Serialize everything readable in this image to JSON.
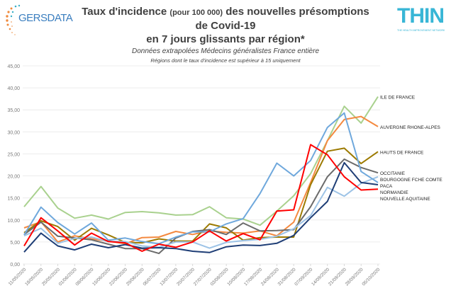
{
  "header": {
    "logo_left": "GERSDATA",
    "logo_right": "THIN",
    "logo_right_sub": "THE HEALTH IMPROVEMENT NETWORK"
  },
  "chart_data": {
    "type": "line",
    "title_part1": "Taux d'incidence",
    "title_part2": "(pour 100 000)",
    "title_part3": "des nouvelles présomptions",
    "title_line2": "de Covid-19",
    "title_line3": "en 7 jours glissants par région*",
    "subtitle": "Données extrapolées Médecins généralistes France entière",
    "note": "Régions dont le taux d'incidence est supérieur à 15 uniquement",
    "ylim": [
      0,
      45
    ],
    "yticks": [
      "0,00",
      "5,00",
      "10,00",
      "15,00",
      "20,00",
      "25,00",
      "30,00",
      "35,00",
      "40,00",
      "45,00"
    ],
    "grid": true,
    "legend": "line-end labels, right",
    "categories": [
      "11/05/2020",
      "18/05/2020",
      "25/05/2020",
      "01/06/2020",
      "08/06/2020",
      "15/06/2020",
      "22/06/2020",
      "29/06/2020",
      "06/07/2020",
      "13/07/2020",
      "20/07/2020",
      "27/07/2020",
      "03/08/2020",
      "10/08/2020",
      "17/08/2020",
      "24/08/2020",
      "31/08/2020",
      "07/09/2020",
      "14/09/2020",
      "21/09/2020",
      "28/09/2020",
      "05/10/2020"
    ],
    "series": [
      {
        "name": "ILE DE FRANCE",
        "color": "#A9D18E",
        "values": [
          13,
          17.6,
          12.7,
          10.4,
          11.1,
          10.2,
          11.7,
          11.9,
          11.6,
          11.1,
          11.2,
          13,
          10.5,
          10.2,
          8.8,
          12,
          15.5,
          20.5,
          28,
          35.8,
          32,
          38
        ]
      },
      {
        "name": "AUVERGNE RHONE-ALPES",
        "color": "#F4893F",
        "values": [
          8.2,
          9.6,
          5.0,
          6.4,
          5.7,
          5.2,
          4.6,
          6.0,
          6.1,
          7.4,
          6.7,
          7.5,
          7.2,
          7.0,
          7.5,
          6.4,
          9.5,
          18.5,
          28,
          32.8,
          33.5,
          31.2
        ]
      },
      {
        "name": "HAUTS DE FRANCE",
        "color": "#9C7A00",
        "values": [
          7.1,
          9.8,
          8.5,
          5.4,
          8.1,
          6.6,
          4.9,
          4.8,
          5.7,
          5.2,
          5.2,
          9.1,
          8.2,
          5.4,
          6.0,
          6.1,
          6.1,
          18,
          25.6,
          26.3,
          22.8,
          25.5
        ]
      },
      {
        "name": "OCCITANIE",
        "color": "#6B6B6B",
        "values": [
          6.7,
          9.5,
          6.3,
          5.9,
          5.5,
          4.5,
          3.5,
          3.5,
          2.4,
          5.9,
          7.4,
          7.8,
          6.7,
          9.3,
          7.5,
          7.6,
          7.8,
          13,
          19.8,
          23.8,
          21.9,
          20.7
        ]
      },
      {
        "name": "BOURGOGNE FCHE COMTE",
        "color": "#9DC3E6",
        "values": [
          6.4,
          8.1,
          4.7,
          5.8,
          6.1,
          5.1,
          5.1,
          4.1,
          3.8,
          5.0,
          5.0,
          3.6,
          4.9,
          5.3,
          5.6,
          6.3,
          8.0,
          11.0,
          17.4,
          15.4,
          18.3,
          19.8
        ]
      },
      {
        "name": "PACA",
        "color": "#6FA8DC",
        "values": [
          6.6,
          12.9,
          9.4,
          6.8,
          9.3,
          5.4,
          5.9,
          5.1,
          4.6,
          6.1,
          7.3,
          7.3,
          9.1,
          10.3,
          16,
          22.9,
          20,
          23.5,
          31,
          34.3,
          21,
          18.5
        ]
      },
      {
        "name": "NORMANDIE",
        "color": "#1F3E76",
        "values": [
          2.7,
          7.0,
          4.1,
          3.2,
          4.5,
          3.7,
          4.4,
          3.6,
          3.7,
          3.5,
          2.9,
          2.6,
          3.9,
          4.3,
          4.2,
          4.7,
          6.5,
          10.5,
          14.2,
          23,
          18.5,
          18.0
        ]
      },
      {
        "name": "NOUVELLE AQUITAINE",
        "color": "#FF0000",
        "values": [
          4.1,
          10.5,
          7.5,
          4.3,
          7.0,
          5.1,
          4.8,
          2.9,
          4.5,
          3.8,
          5.0,
          7.5,
          5.2,
          6.9,
          5.5,
          12,
          12.3,
          27.1,
          24.8,
          19.8,
          16.8,
          17
        ]
      }
    ],
    "label_offsets": [
      0,
      0,
      0,
      -4,
      3,
      2,
      0,
      4
    ]
  }
}
